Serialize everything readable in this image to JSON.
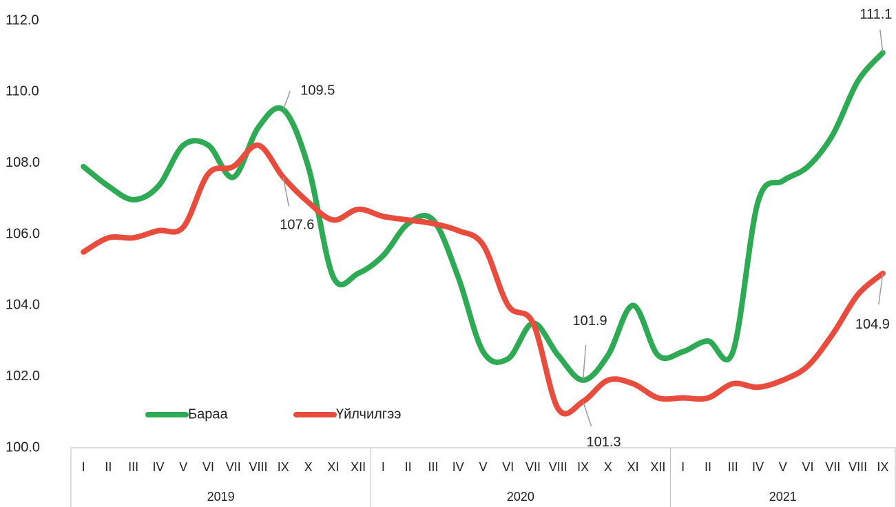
{
  "chart_data": {
    "type": "line",
    "categories": [
      "I",
      "II",
      "III",
      "IV",
      "V",
      "VI",
      "VII",
      "VIII",
      "IX",
      "X",
      "XI",
      "XII",
      "I",
      "II",
      "III",
      "IV",
      "V",
      "VI",
      "VII",
      "VIII",
      "IX",
      "X",
      "XI",
      "XII",
      "I",
      "II",
      "III",
      "IV",
      "V",
      "VI",
      "VII",
      "VIII",
      "IX"
    ],
    "groups": [
      {
        "label": "2019",
        "count": 12
      },
      {
        "label": "2020",
        "count": 12
      },
      {
        "label": "2021",
        "count": 9
      }
    ],
    "series": [
      {
        "name": "Бараа",
        "color": "#2eaa55",
        "labeled_points": [
          8,
          20,
          32
        ],
        "values": [
          107.9,
          107.35,
          106.97,
          107.35,
          108.5,
          108.5,
          107.6,
          109.0,
          109.5,
          107.9,
          104.8,
          104.9,
          105.4,
          106.3,
          106.4,
          104.8,
          102.7,
          102.5,
          103.5,
          102.6,
          101.9,
          102.6,
          104.0,
          102.6,
          102.7,
          103.0,
          102.7,
          106.9,
          107.5,
          107.9,
          108.8,
          110.3,
          111.1
        ]
      },
      {
        "name": "Үйлчилгээ",
        "color": "#e84c3d",
        "labeled_points": [
          8,
          20,
          32
        ],
        "values": [
          105.5,
          105.9,
          105.9,
          106.1,
          106.2,
          107.7,
          107.9,
          108.5,
          107.6,
          106.9,
          106.4,
          106.7,
          106.5,
          106.4,
          106.3,
          106.1,
          105.7,
          104.0,
          103.5,
          101.1,
          101.3,
          101.9,
          101.8,
          101.4,
          101.4,
          101.4,
          101.8,
          101.7,
          101.9,
          102.3,
          103.2,
          104.3,
          104.9
        ]
      }
    ],
    "ylim": [
      100,
      112
    ],
    "yticks": [
      {
        "value": 100,
        "label": "100.0"
      },
      {
        "value": 102,
        "label": "102.0"
      },
      {
        "value": 104,
        "label": "104.0"
      },
      {
        "value": 106,
        "label": "106.0"
      },
      {
        "value": 108,
        "label": "108.0"
      },
      {
        "value": 110,
        "label": "110.0"
      },
      {
        "value": 112,
        "label": "112.0"
      }
    ],
    "legend": "lower-left"
  }
}
